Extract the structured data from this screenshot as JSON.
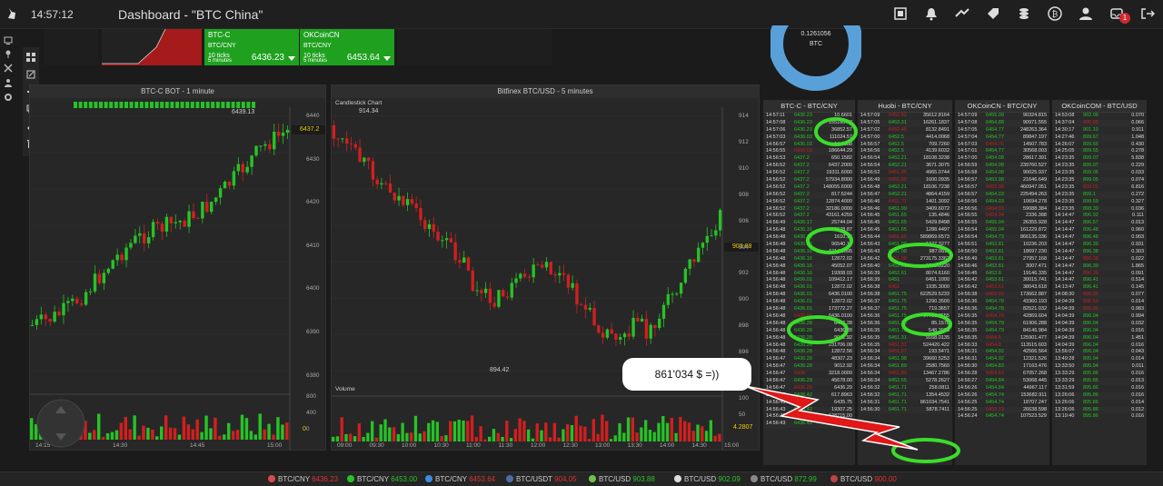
{
  "header": {
    "clock": "14:57:12",
    "title": "Dashboard - \"BTC China\"",
    "notification_count": "1"
  },
  "tickers": [
    {
      "name": "BTC-C",
      "pair": "BTC/CNY",
      "ticks": "10 ticks",
      "interval": "5 minutes",
      "price": "6436.23"
    },
    {
      "name": "OKCoinCN",
      "pair": "BTC/CNY",
      "ticks": "10 ticks",
      "interval": "5 minutes",
      "price": "6453.64"
    }
  ],
  "donut": {
    "value": "0.1261056",
    "currency": "BTC"
  },
  "chart_left": {
    "title": "BTC-C BOT - 1 minute",
    "y_ticks": [
      "6440",
      "6430",
      "6420",
      "6410",
      "6400",
      "6390",
      "6380"
    ],
    "x_ticks": [
      "14:15",
      "14:30",
      "14:45",
      "15:00"
    ],
    "vol_ticks": [
      "800",
      "400",
      "0"
    ],
    "high_label": "6439.13",
    "last_price": "6437.2",
    "vol_last": "0"
  },
  "chart_right": {
    "title": "Bitfinex BTC/USD - 5 minutes",
    "subtitle": "Candlestick Chart",
    "high_label": "914.34",
    "low_label": "894.42",
    "y_ticks": [
      "914",
      "912",
      "910",
      "908",
      "906",
      "904",
      "902",
      "900",
      "898",
      "896"
    ],
    "x_ticks": [
      "09:00",
      "09:30",
      "10:00",
      "10:30",
      "11:00",
      "11:30",
      "12:00",
      "12:30",
      "13:00",
      "13:30",
      "14:00",
      "14:30",
      "15:00"
    ],
    "vol_label": "Volume",
    "vol_ticks": [
      "100",
      "50"
    ],
    "last_price": "903.88",
    "vol_last": "4.2807"
  },
  "speech_bubble": "861'034 $ =))",
  "tables": [
    {
      "title": "BTC-C - BTC/CNY",
      "rows": [
        [
          "14:57:11",
          "6436.23",
          "10.6601"
        ],
        [
          "14:57:08",
          "6436.23",
          "155160.83"
        ],
        [
          "14:57:06",
          "6436.23",
          "36852.57"
        ],
        [
          "14:57:03",
          "6436.03",
          "111024.57"
        ],
        [
          "14:56:57",
          "6436.03",
          "64.3688"
        ],
        [
          "14:56:55",
          "6436.03",
          "186644.29"
        ],
        [
          "14:56:53",
          "6437.2",
          "650.1582"
        ],
        [
          "14:56:52",
          "6437.2",
          "6437.2000"
        ],
        [
          "14:56:52",
          "6437.2",
          "19311.6000"
        ],
        [
          "14:56:52",
          "6437.2",
          "57934.8000"
        ],
        [
          "14:56:52",
          "6437.2",
          "148055.6000"
        ],
        [
          "14:56:52",
          "6437.2",
          "817.5244"
        ],
        [
          "14:56:52",
          "6437.2",
          "12874.4000"
        ],
        [
          "14:56:52",
          "6437.2",
          "32186.0000"
        ],
        [
          "14:56:52",
          "6437.2",
          "43161.4259"
        ],
        [
          "14:56:49",
          "6436.17",
          "25744.04"
        ],
        [
          "14:56:48",
          "6436.16",
          "18678.87"
        ],
        [
          "14:56:48",
          "6436.16",
          "1610.14"
        ],
        [
          "14:56:48",
          "6436.16",
          "96540.15"
        ],
        [
          "14:56:48",
          "6436.16",
          "6114.2095"
        ],
        [
          "14:56:48",
          "6436.16",
          "12872.02"
        ],
        [
          "14:56:48",
          "6436.16",
          "45052.07"
        ],
        [
          "14:56:48",
          "6436.16",
          "19308.03"
        ],
        [
          "14:56:48",
          "6436.01",
          "109412.17"
        ],
        [
          "14:56:48",
          "6436.01",
          "12872.02"
        ],
        [
          "14:56:48",
          "6436.01",
          "6436.0100"
        ],
        [
          "14:56:48",
          "6436.01",
          "12872.02"
        ],
        [
          "14:56:48",
          "6436.01",
          "173772.27"
        ],
        [
          "14:56:48",
          "6436.01",
          "6436.0100"
        ],
        [
          "14:56:48",
          "6436.28",
          "6436.28"
        ],
        [
          "14:56:48",
          "6436.28",
          "6436.28"
        ],
        [
          "14:56:48",
          "6436.28",
          "9012.92"
        ],
        [
          "14:56:48",
          "6436.28",
          "231706.08"
        ],
        [
          "14:56:48",
          "6436.28",
          "12872.56"
        ],
        [
          "14:56:47",
          "6436.28",
          "48307.23"
        ],
        [
          "14:56:47",
          "6436.28",
          "9012.92"
        ],
        [
          "14:56:47",
          "6436",
          "3218.0000"
        ],
        [
          "14:56:47",
          "6436.29",
          "45678.00"
        ],
        [
          "14:56:47",
          "6436.29",
          "6436.29"
        ],
        [
          "14:56:45",
          "6436.42",
          "617.8963"
        ],
        [
          "14:56:43",
          "6436.42",
          "6435.75"
        ],
        [
          "14:56:43",
          "6436.42",
          "19307.25"
        ],
        [
          "14:56:43",
          "6436.42",
          "128715.00"
        ],
        [
          "14:56:43",
          "6436.42",
          "148022.25"
        ]
      ]
    },
    {
      "title": "Huobi - BTC/CNY",
      "rows": [
        [
          "14:57:09",
          "6452.82",
          "35612.8164"
        ],
        [
          "14:57:05",
          "6453.31",
          "16261.1837"
        ],
        [
          "14:57:02",
          "6452.45",
          "8132.8491"
        ],
        [
          "14:57:00",
          "6452.5",
          "4414.0068"
        ],
        [
          "14:56:57",
          "6452.5",
          "709.7260"
        ],
        [
          "14:56:56",
          "6452.5",
          "4139.6032"
        ],
        [
          "14:56:54",
          "6452.21",
          "18108.3238"
        ],
        [
          "14:56:54",
          "6452.21",
          "3671.3075"
        ],
        [
          "14:56:52",
          "6451.95",
          "4965.0744"
        ],
        [
          "14:56:49",
          "6451.99",
          "1600.0935"
        ],
        [
          "14:56:48",
          "6452.21",
          "18106.7238"
        ],
        [
          "14:56:47",
          "6452.21",
          "4864.4159"
        ],
        [
          "14:56:46",
          "6451.71",
          "1401.3092"
        ],
        [
          "14:56:46",
          "6451.99",
          "3409.6072"
        ],
        [
          "14:56:45",
          "6451.65",
          "135.4846"
        ],
        [
          "14:56:45",
          "6451.65",
          "5429.8498"
        ],
        [
          "14:56:45",
          "6451.65",
          "1288.4497"
        ],
        [
          "14:56:44",
          "6451.65",
          "589869.6573"
        ],
        [
          "14:56:43",
          "6451.98",
          "1277.3277"
        ],
        [
          "14:56:43",
          "6451.98",
          "987.0611"
        ],
        [
          "14:56:42",
          "6451.98",
          "273175.3362"
        ],
        [
          "14:56:40",
          "6452.61",
          "1290.5220"
        ],
        [
          "14:56:39",
          "6452.61",
          "8074.6160"
        ],
        [
          "14:56:39",
          "6451",
          "6451.1000"
        ],
        [
          "14:56:38",
          "6451",
          "1935.3000"
        ],
        [
          "14:56:38",
          "6451.75",
          "622529.5233"
        ],
        [
          "14:56:37",
          "6451.75",
          "1290.3500"
        ],
        [
          "14:56:37",
          "6451.75",
          "719.3657"
        ],
        [
          "14:56:36",
          "6451.75",
          "67795.2555"
        ],
        [
          "14:56:36",
          "6451.75",
          "85.1578"
        ],
        [
          "14:56:35",
          "6451.75",
          "548.3988"
        ],
        [
          "14:56:35",
          "6451.31",
          "9168.0135"
        ],
        [
          "14:56:35",
          "6451.31",
          "524420.422"
        ],
        [
          "14:56:34",
          "6451.57",
          "193.5471"
        ],
        [
          "14:56:34",
          "6451.98",
          "39660.5253"
        ],
        [
          "14:56:34",
          "6451.89",
          "2580.7560"
        ],
        [
          "14:56:34",
          "6451.89",
          "13467.2786"
        ],
        [
          "14:56:34",
          "6452.65",
          "5278.2627"
        ],
        [
          "14:56:32",
          "6451.71",
          "258.0811"
        ],
        [
          "14:56:32",
          "6451.71",
          "1354.4532"
        ],
        [
          "14:56:31",
          "6451.71",
          "861034.7541"
        ],
        [
          "14:56:30",
          "6451.71",
          "5878.7411"
        ]
      ]
    },
    {
      "title": "OKCoinCN - BTC/CNY",
      "rows": [
        [
          "14:57:09",
          "6455.09",
          "90324.815"
        ],
        [
          "14:57:08",
          "6454.88",
          "90971.555"
        ],
        [
          "14:57:05",
          "6454.77",
          "248263.364"
        ],
        [
          "14:57:04",
          "6454.77",
          "89847.197"
        ],
        [
          "14:57:03",
          "6454.76",
          "14507.783"
        ],
        [
          "14:57:01",
          "6454.77",
          "30568.003"
        ],
        [
          "14:57:00",
          "6454.08",
          "28617.391"
        ],
        [
          "14:56:59",
          "6454.08",
          "239760.527"
        ],
        [
          "14:56:58",
          "6454.08",
          "90025.937"
        ],
        [
          "14:56:57",
          "6453.98",
          "21646.649"
        ],
        [
          "14:56:57",
          "6453.98",
          "460947.051"
        ],
        [
          "14:56:57",
          "6454.03",
          "225494.263"
        ],
        [
          "14:56:56",
          "6454.03",
          "10694.278"
        ],
        [
          "14:56:56",
          "6454.03",
          "59088.384"
        ],
        [
          "14:56:55",
          "6454.04",
          "2336.388"
        ],
        [
          "14:56:55",
          "6455.04",
          "26355.928"
        ],
        [
          "14:56:54",
          "6455.04",
          "161229.872"
        ],
        [
          "14:56:54",
          "6454.73",
          "866135.036"
        ],
        [
          "14:56:51",
          "6453.81",
          "10236.203"
        ],
        [
          "14:56:50",
          "6453.81",
          "18697.230"
        ],
        [
          "14:56:49",
          "6453.81",
          "27957.168"
        ],
        [
          "14:56:46",
          "6453.81",
          "3007.471"
        ],
        [
          "14:56:45",
          "6453.8",
          "19146.335"
        ],
        [
          "14:56:42",
          "6453.61",
          "30015.741"
        ],
        [
          "14:56:42",
          "6453.61",
          "38043.618"
        ],
        [
          "14:56:38",
          "6453.95",
          "173662.887"
        ],
        [
          "14:56:36",
          "6454.78",
          "43360.193"
        ],
        [
          "14:56:36",
          "6454.78",
          "82521.032"
        ],
        [
          "14:56:35",
          "6454.78",
          "42869.604"
        ],
        [
          "14:56:35",
          "6454.79",
          "61906.288"
        ],
        [
          "14:56:35",
          "6454.79",
          "84146.984"
        ],
        [
          "14:56:35",
          "6454.5",
          "125901.477"
        ],
        [
          "14:56:33",
          "6454.8",
          "113515.603"
        ],
        [
          "14:56:31",
          "6454.92",
          "42566.564"
        ],
        [
          "14:56:31",
          "6454.92",
          "12321.526"
        ],
        [
          "14:56:30",
          "6454.83",
          "17163.476"
        ],
        [
          "14:56:28",
          "6454.83",
          "67057.268"
        ],
        [
          "14:56:27",
          "6454.84",
          "53068.445"
        ],
        [
          "14:56:26",
          "6454.84",
          "44967.117"
        ],
        [
          "14:56:26",
          "6454.74",
          "153682.911"
        ],
        [
          "14:56:25",
          "6454.74",
          "18707.247"
        ],
        [
          "14:56:25",
          "6453.73",
          "26638.598"
        ],
        [
          "14:56:24",
          "6454.74",
          "107523.529"
        ]
      ]
    },
    {
      "title": "OKCoinCOM - BTC/USD",
      "rows": [
        [
          "14:53:08",
          "902.09",
          "0.070"
        ],
        [
          "14:37:04",
          "900.89",
          "0.066"
        ],
        [
          "14:30:17",
          "901.10",
          "0.911"
        ],
        [
          "14:27:46",
          "899.67",
          "1.048"
        ],
        [
          "14:26:07",
          "899.66",
          "0.430"
        ],
        [
          "14:25:05",
          "899.55",
          "0.278"
        ],
        [
          "14:23:35",
          "899.07",
          "5.838"
        ],
        [
          "14:23:35",
          "899.07",
          "0.229"
        ],
        [
          "14:23:35",
          "899.06",
          "0.033"
        ],
        [
          "14:23:35",
          "899.05",
          "0.074"
        ],
        [
          "14:23:35",
          "899.01",
          "6.816"
        ],
        [
          "14:23:35",
          "899.1",
          "0.272"
        ],
        [
          "14:23:35",
          "898.59",
          "0.327"
        ],
        [
          "14:23:35",
          "898.39",
          "0.036"
        ],
        [
          "14:14:47",
          "896.92",
          "0.111"
        ],
        [
          "14:14:47",
          "896.57",
          "0.013"
        ],
        [
          "14:14:47",
          "896.48",
          "0.960"
        ],
        [
          "14:14:47",
          "896.48",
          "0.903"
        ],
        [
          "14:14:47",
          "896.39",
          "0.931"
        ],
        [
          "14:14:47",
          "896.38",
          "0.303"
        ],
        [
          "14:14:47",
          "896.38",
          "0.022"
        ],
        [
          "14:14:47",
          "896.39",
          "1.865"
        ],
        [
          "14:14:47",
          "896.39",
          "0.091"
        ],
        [
          "14:14:47",
          "896.41",
          "0.514"
        ],
        [
          "14:13:47",
          "896.41",
          "0.145"
        ],
        [
          "14:08:30",
          "895.39",
          "0.077"
        ],
        [
          "14:04:39",
          "895.50",
          "0.014"
        ],
        [
          "14:04:39",
          "895.96",
          "0.983"
        ],
        [
          "14:04:39",
          "896.04",
          "0.994"
        ],
        [
          "14:04:39",
          "896.04",
          "0.032"
        ],
        [
          "14:04:39",
          "896.04",
          "0.016"
        ],
        [
          "14:04:39",
          "896.04",
          "1.451"
        ],
        [
          "14:04:39",
          "896.04",
          "0.016"
        ],
        [
          "13:56:07",
          "896.04",
          "0.043"
        ],
        [
          "13:49:28",
          "895.94",
          "0.014"
        ],
        [
          "13:33:50",
          "895.94",
          "0.011"
        ],
        [
          "13:33:29",
          "895.86",
          "0.016"
        ],
        [
          "13:33:29",
          "895.86",
          "0.013"
        ],
        [
          "13:31:59",
          "895.86",
          "0.016"
        ],
        [
          "13:26:06",
          "895.86",
          "0.016"
        ],
        [
          "13:26:06",
          "895.86",
          "0.014"
        ],
        [
          "13:26:06",
          "895.86",
          "0.012"
        ],
        [
          "13:19:40",
          "895.86",
          "0.016"
        ]
      ]
    }
  ],
  "bottom_bar": [
    {
      "pair": "BTC/CNY",
      "price": "6436.23",
      "color": "#e03030"
    },
    {
      "pair": "BTC/CNY",
      "price": "6453.00",
      "color": "#27c227"
    },
    {
      "pair": "BTC/CNY",
      "price": "6453.64",
      "color": "#e03030"
    },
    {
      "pair": "BTC/USDT",
      "price": "904.05",
      "color": "#e03030"
    },
    {
      "pair": "BTC/USD",
      "price": "903.88",
      "color": "#27c227"
    },
    {
      "pair": "BTC/USD",
      "price": "902.09",
      "color": "#27c227"
    },
    {
      "pair": "BTC/USD",
      "price": "872.99",
      "color": "#27c227"
    },
    {
      "pair": "BTC/USD",
      "price": "900.00",
      "color": "#e03030"
    }
  ],
  "colors": {
    "up": "#27c227",
    "down": "#d11f1f",
    "accent": "#5aa0d8"
  }
}
